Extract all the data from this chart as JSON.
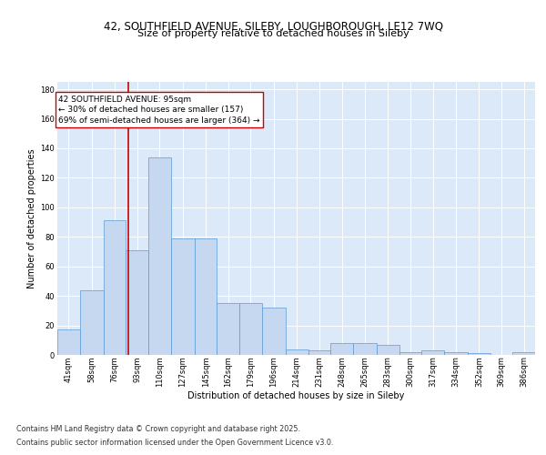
{
  "title1": "42, SOUTHFIELD AVENUE, SILEBY, LOUGHBOROUGH, LE12 7WQ",
  "title2": "Size of property relative to detached houses in Sileby",
  "xlabel": "Distribution of detached houses by size in Sileby",
  "ylabel": "Number of detached properties",
  "bin_labels": [
    "41sqm",
    "58sqm",
    "76sqm",
    "93sqm",
    "110sqm",
    "127sqm",
    "145sqm",
    "162sqm",
    "179sqm",
    "196sqm",
    "214sqm",
    "231sqm",
    "248sqm",
    "265sqm",
    "283sqm",
    "300sqm",
    "317sqm",
    "334sqm",
    "352sqm",
    "369sqm",
    "386sqm"
  ],
  "bin_edges": [
    41,
    58,
    76,
    93,
    110,
    127,
    145,
    162,
    179,
    196,
    214,
    231,
    248,
    265,
    283,
    300,
    317,
    334,
    352,
    369,
    386
  ],
  "bar_heights": [
    17,
    44,
    91,
    71,
    134,
    79,
    79,
    35,
    35,
    32,
    4,
    3,
    8,
    8,
    7,
    2,
    3,
    2,
    1,
    0,
    2
  ],
  "bar_color": "#c5d8f0",
  "bar_edge_color": "#5b9bd5",
  "property_size": 95,
  "vline_color": "#cc0000",
  "annotation_text": "42 SOUTHFIELD AVENUE: 95sqm\n← 30% of detached houses are smaller (157)\n69% of semi-detached houses are larger (364) →",
  "annotation_box_color": "#ffffff",
  "annotation_box_edge": "#cc0000",
  "ylim": [
    0,
    185
  ],
  "yticks": [
    0,
    20,
    40,
    60,
    80,
    100,
    120,
    140,
    160,
    180
  ],
  "bg_color": "#dce9f8",
  "footer1": "Contains HM Land Registry data © Crown copyright and database right 2025.",
  "footer2": "Contains public sector information licensed under the Open Government Licence v3.0.",
  "title1_fontsize": 8.5,
  "title2_fontsize": 8,
  "axis_label_fontsize": 7,
  "tick_fontsize": 6,
  "annotation_fontsize": 6.5,
  "footer_fontsize": 5.8
}
